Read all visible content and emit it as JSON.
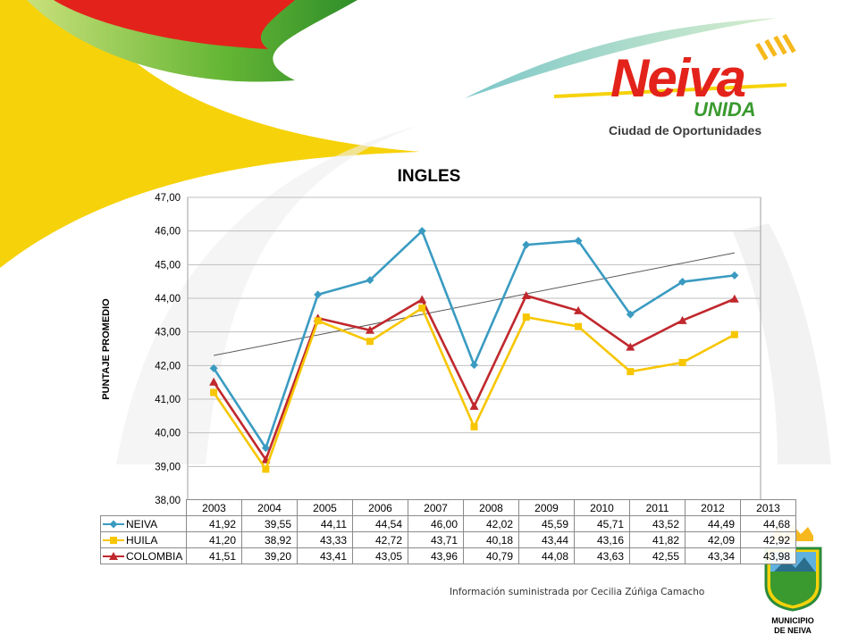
{
  "brand": {
    "logo_word": "Neiva",
    "logo_sub": "UNIDA",
    "tagline": "Ciudad de Oportunidades",
    "crest_caption_line1": "MUNICIPIO",
    "crest_caption_line2": "DE NEIVA"
  },
  "source_note": "Información suministrada por Cecilia Zúñiga Camacho",
  "colors": {
    "neiva": "#3a9bc1",
    "huila": "#f7c600",
    "colombia": "#c0282d",
    "trend": "#595959",
    "grid": "#bfbfbf",
    "brand_red": "#e3231b",
    "brand_green": "#3a9a2f",
    "brand_yellow": "#f6d20a"
  },
  "chart_data": {
    "type": "line",
    "title": "INGLES",
    "xlabel": "",
    "ylabel": "PUNTAJE PROMEDIO",
    "categories": [
      "2003",
      "2004",
      "2005",
      "2006",
      "2007",
      "2008",
      "2009",
      "2010",
      "2011",
      "2012",
      "2013"
    ],
    "ylim": [
      38,
      47
    ],
    "y_ticks": [
      "38,00",
      "39,00",
      "40,00",
      "41,00",
      "42,00",
      "43,00",
      "44,00",
      "45,00",
      "46,00",
      "47,00"
    ],
    "grid": true,
    "legend": "data-table",
    "series": [
      {
        "name": "NEIVA",
        "color": "#3a9bc1",
        "marker": "diamond",
        "values": [
          41.92,
          39.55,
          44.11,
          44.54,
          46.0,
          42.02,
          45.59,
          45.71,
          43.52,
          44.49,
          44.68
        ],
        "labels": [
          "41,92",
          "39,55",
          "44,11",
          "44,54",
          "46,00",
          "42,02",
          "45,59",
          "45,71",
          "43,52",
          "44,49",
          "44,68"
        ]
      },
      {
        "name": "HUILA",
        "color": "#f7c600",
        "marker": "square",
        "values": [
          41.2,
          38.92,
          43.33,
          42.72,
          43.71,
          40.18,
          43.44,
          43.16,
          41.82,
          42.09,
          42.92
        ],
        "labels": [
          "41,20",
          "38,92",
          "43,33",
          "42,72",
          "43,71",
          "40,18",
          "43,44",
          "43,16",
          "41,82",
          "42,09",
          "42,92"
        ]
      },
      {
        "name": "COLOMBIA",
        "color": "#c0282d",
        "marker": "triangle",
        "values": [
          41.51,
          39.2,
          43.41,
          43.05,
          43.96,
          40.79,
          44.08,
          43.63,
          42.55,
          43.34,
          43.98
        ],
        "labels": [
          "41,51",
          "39,20",
          "43,41",
          "43,05",
          "43,96",
          "40,79",
          "44,08",
          "43,63",
          "42,55",
          "43,34",
          "43,98"
        ]
      }
    ],
    "trendline": {
      "series": "NEIVA",
      "start": 42.3,
      "end": 45.35
    }
  }
}
